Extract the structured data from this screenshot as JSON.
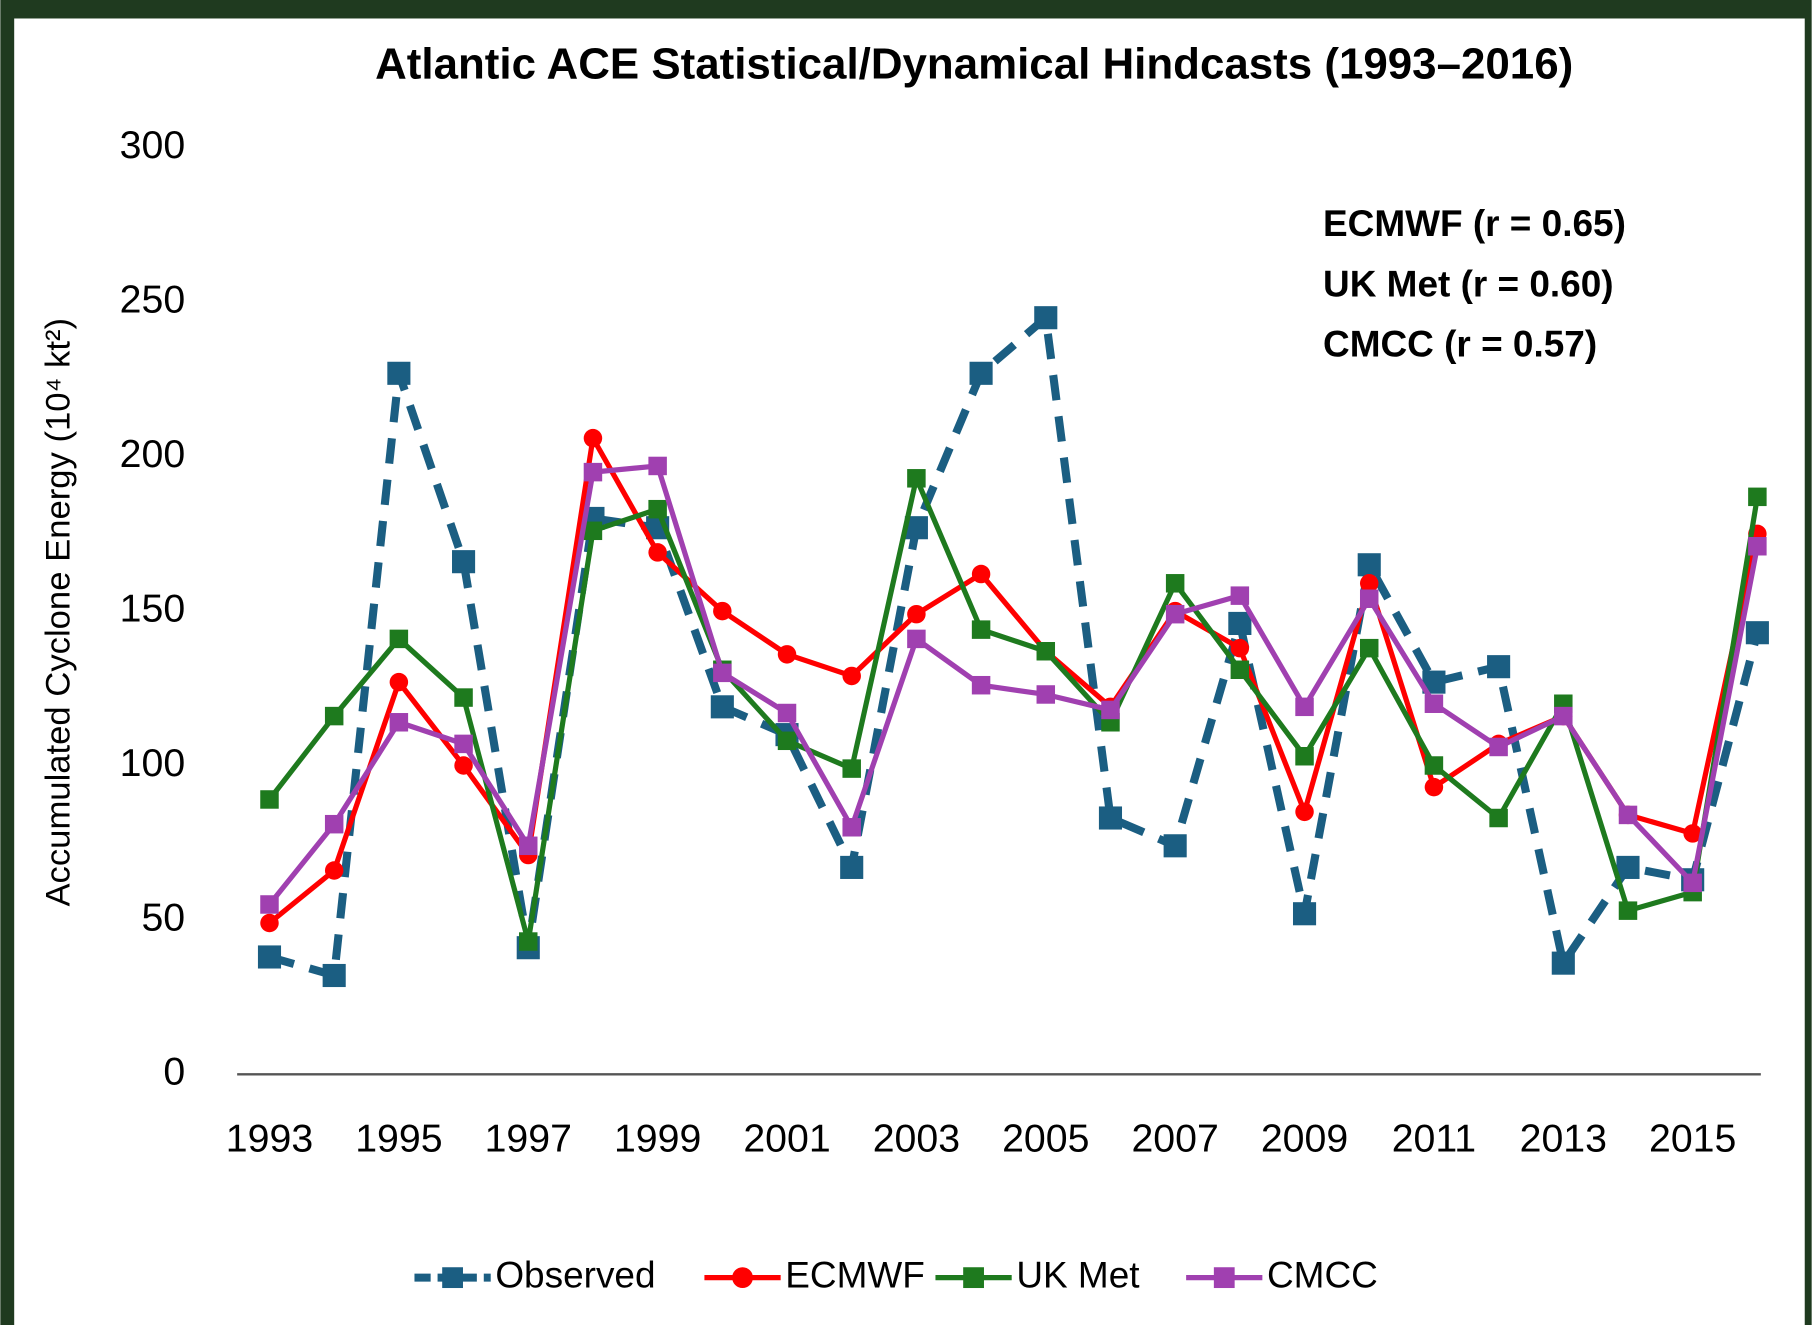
{
  "chart_data": {
    "type": "line",
    "title": "Atlantic ACE Statistical/Dynamical Hindcasts (1993–2016)",
    "y_label": "Accumulated Cyclone Energy (10⁴ kt²)",
    "annotations": [
      "ECMWF (r = 0.65)",
      "UK Met (r = 0.60)",
      "CMCC (r = 0.57)"
    ],
    "categories": [
      "1993",
      null,
      "1995",
      null,
      "1997",
      null,
      "1999",
      null,
      "2001",
      null,
      "2003",
      null,
      "2005",
      null,
      "2007",
      null,
      "2009",
      null,
      "2011",
      null,
      "2013",
      null,
      "2015",
      null
    ],
    "ylim": [
      0,
      300
    ],
    "yticks": [
      0,
      50,
      100,
      150,
      200,
      250,
      300
    ],
    "grid": false,
    "legend": "bottom",
    "series": [
      {
        "name": "Observed",
        "color": "#1b5e82",
        "dashed": true,
        "marker": "square",
        "values": [
          38,
          32,
          227,
          166,
          41,
          180,
          177,
          119,
          110,
          67,
          177,
          227,
          245,
          83,
          74,
          146,
          52,
          165,
          127,
          132,
          36,
          67,
          63,
          143
        ]
      },
      {
        "name": "ECMWF",
        "color": "#ff0000",
        "dashed": false,
        "marker": "circle",
        "values": [
          49,
          66,
          127,
          100,
          71,
          206,
          169,
          150,
          136,
          129,
          149,
          162,
          137,
          119,
          150,
          138,
          85,
          159,
          93,
          107,
          116,
          84,
          78,
          175
        ]
      },
      {
        "name": "UK Met",
        "color": "#1e7a1e",
        "dashed": false,
        "marker": "square",
        "values": [
          89,
          116,
          141,
          122,
          43,
          176,
          183,
          131,
          108,
          99,
          193,
          144,
          137,
          114,
          159,
          131,
          103,
          138,
          100,
          83,
          120,
          53,
          59,
          187
        ]
      },
      {
        "name": "CMCC",
        "color": "#a040b0",
        "dashed": false,
        "marker": "square",
        "values": [
          55,
          81,
          114,
          107,
          74,
          195,
          197,
          130,
          117,
          80,
          141,
          126,
          123,
          118,
          149,
          155,
          119,
          154,
          120,
          106,
          116,
          84,
          62,
          171
        ]
      }
    ]
  }
}
